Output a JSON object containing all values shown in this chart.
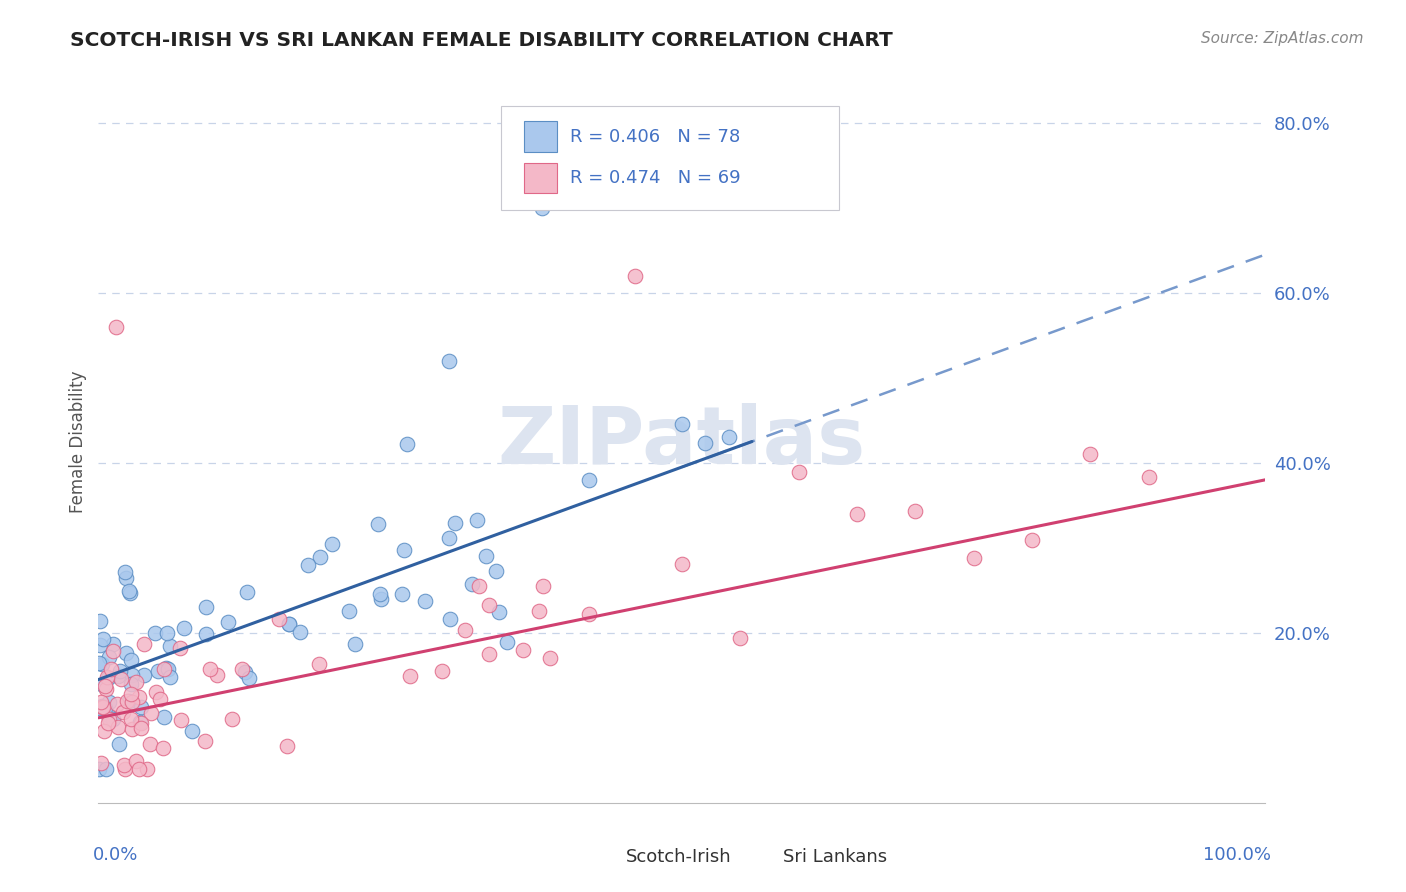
{
  "title": "SCOTCH-IRISH VS SRI LANKAN FEMALE DISABILITY CORRELATION CHART",
  "source": "Source: ZipAtlas.com",
  "ylabel": "Female Disability",
  "scotch_irish_label": "Scotch-Irish",
  "sri_lankans_label": "Sri Lankans",
  "scotch_irish": {
    "R": 0.406,
    "N": 78,
    "fill_color": "#aac8ed",
    "edge_color": "#5b8ec4",
    "line_color": "#3060a0"
  },
  "sri_lankans": {
    "R": 0.474,
    "N": 69,
    "fill_color": "#f4b8c8",
    "edge_color": "#e06888",
    "line_color": "#d04070"
  },
  "dashed_line_color": "#7799cc",
  "ytick_values": [
    0.0,
    0.2,
    0.4,
    0.6,
    0.8
  ],
  "background_color": "#ffffff",
  "grid_color": "#c8d4e8",
  "title_color": "#222222",
  "axis_label_color": "#4472c4",
  "legend_text_color": "#4472c4",
  "watermark_color": "#dde4f0"
}
